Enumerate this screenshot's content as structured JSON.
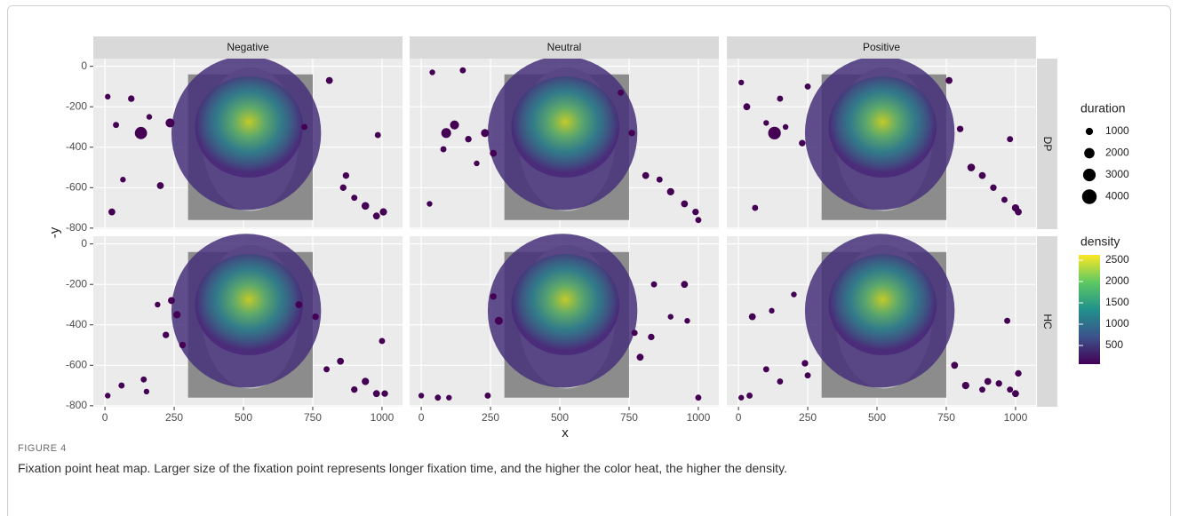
{
  "chart_data": {
    "type": "scatter",
    "x_label": "x",
    "y_label": "-y",
    "columns": [
      "Negative",
      "Neutral",
      "Positive"
    ],
    "rows": [
      "DP",
      "HC"
    ],
    "xlim": [
      -42,
      1074
    ],
    "xticks": [
      0,
      250,
      500,
      750,
      1000
    ],
    "ylim": [
      -805,
      38
    ],
    "yticks": [
      0,
      -200,
      -400,
      -600,
      -800
    ],
    "grid": true,
    "color": "#440154",
    "panels": [
      {
        "x": [
          10,
          25,
          40,
          65,
          95,
          130,
          160,
          200,
          235,
          810,
          870,
          900,
          940,
          980,
          1005,
          985,
          860,
          720
        ],
        "y": [
          -150,
          -720,
          -290,
          -560,
          -160,
          -330,
          -250,
          -590,
          -280,
          -70,
          -540,
          -650,
          -690,
          -740,
          -720,
          -340,
          -600,
          -300
        ],
        "duration": [
          600,
          900,
          700,
          600,
          800,
          2800,
          600,
          900,
          1500,
          900,
          800,
          700,
          1100,
          900,
          1000,
          700,
          800,
          700
        ]
      },
      {
        "x": [
          40,
          80,
          90,
          120,
          150,
          170,
          200,
          230,
          260,
          720,
          760,
          810,
          860,
          900,
          950,
          990,
          1000,
          30
        ],
        "y": [
          -30,
          -410,
          -330,
          -290,
          -20,
          -360,
          -480,
          -330,
          -430,
          -130,
          -330,
          -540,
          -560,
          -620,
          -680,
          -720,
          -760,
          -680
        ],
        "duration": [
          600,
          700,
          1800,
          1500,
          700,
          800,
          600,
          1200,
          900,
          700,
          800,
          900,
          700,
          1000,
          900,
          800,
          700,
          600
        ]
      },
      {
        "x": [
          10,
          30,
          60,
          100,
          130,
          150,
          170,
          230,
          250,
          760,
          800,
          840,
          880,
          920,
          960,
          1000,
          1010,
          980
        ],
        "y": [
          -80,
          -200,
          -700,
          -280,
          -330,
          -160,
          -300,
          -380,
          -100,
          -70,
          -310,
          -500,
          -540,
          -600,
          -660,
          -700,
          -720,
          -360
        ],
        "duration": [
          600,
          900,
          700,
          600,
          3000,
          700,
          600,
          800,
          700,
          900,
          800,
          1100,
          900,
          800,
          700,
          1000,
          900,
          700
        ]
      },
      {
        "x": [
          10,
          60,
          140,
          150,
          190,
          220,
          240,
          260,
          280,
          700,
          760,
          800,
          850,
          900,
          940,
          980,
          1000,
          1010
        ],
        "y": [
          -750,
          -700,
          -670,
          -730,
          -300,
          -450,
          -280,
          -350,
          -500,
          -300,
          -360,
          -620,
          -580,
          -720,
          -680,
          -740,
          -480,
          -740
        ],
        "duration": [
          600,
          700,
          700,
          600,
          600,
          800,
          900,
          1000,
          800,
          900,
          800,
          700,
          900,
          800,
          1000,
          900,
          700,
          800
        ]
      },
      {
        "x": [
          0,
          60,
          100,
          240,
          280,
          260,
          770,
          790,
          830,
          840,
          900,
          950,
          960,
          1000
        ],
        "y": [
          -750,
          -760,
          -760,
          -750,
          -380,
          -260,
          -440,
          -560,
          -460,
          -200,
          -360,
          -200,
          -380,
          -760
        ],
        "duration": [
          600,
          700,
          600,
          700,
          1200,
          800,
          700,
          900,
          800,
          700,
          600,
          900,
          600,
          700
        ]
      },
      {
        "x": [
          10,
          40,
          50,
          100,
          120,
          150,
          200,
          240,
          250,
          780,
          820,
          880,
          900,
          940,
          980,
          1000,
          1010,
          970
        ],
        "y": [
          -760,
          -750,
          -360,
          -620,
          -330,
          -680,
          -250,
          -590,
          -650,
          -600,
          -700,
          -720,
          -680,
          -690,
          -720,
          -740,
          -640,
          -380
        ],
        "duration": [
          600,
          700,
          900,
          700,
          600,
          700,
          600,
          800,
          700,
          900,
          1000,
          700,
          900,
          800,
          700,
          900,
          800,
          700
        ]
      }
    ],
    "size_legend": {
      "title": "duration",
      "values": [
        1000,
        2000,
        3000,
        4000
      ]
    },
    "colorbar": {
      "title": "density",
      "clim": [
        63,
        2625
      ],
      "ticks": [
        500,
        1000,
        1500,
        2000,
        2500
      ],
      "colors": [
        "#440154",
        "#3b528b",
        "#21918c",
        "#5ec962",
        "#fde725"
      ]
    }
  },
  "figure_label": "FIGURE 4",
  "caption": "Fixation point heat map. Larger size of the fixation point represents longer fixation time, and the higher the color heat, the higher the density."
}
